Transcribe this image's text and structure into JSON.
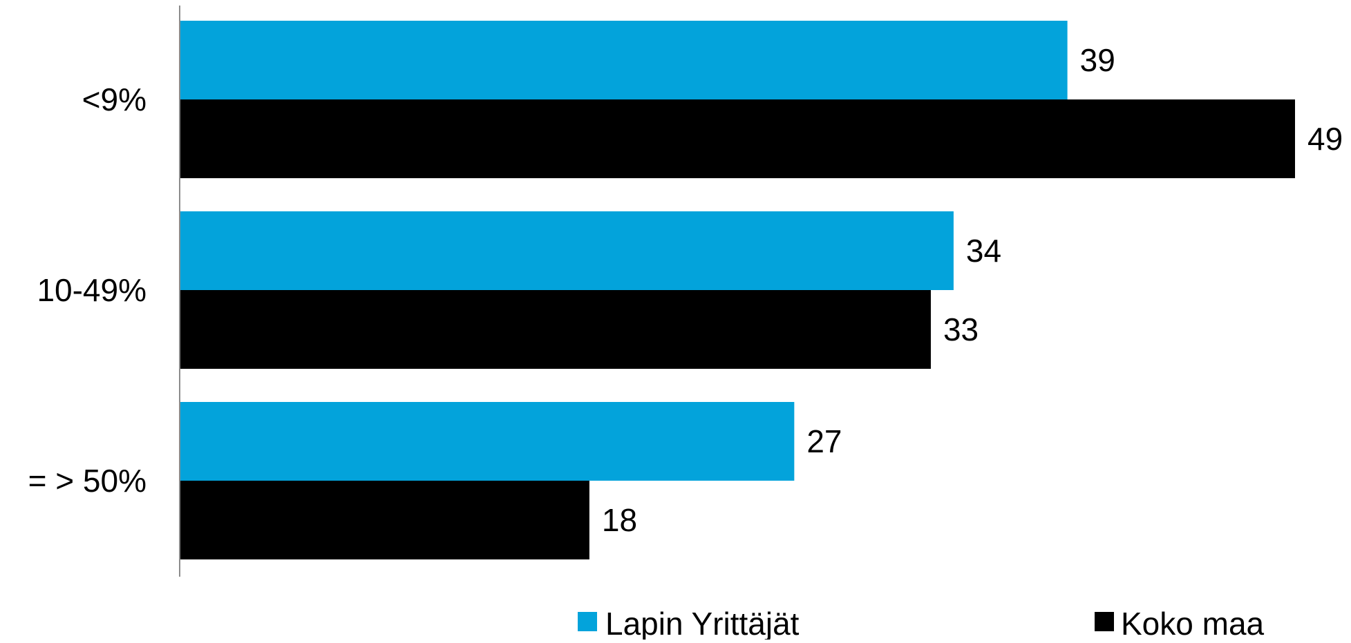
{
  "chart_data": {
    "type": "bar",
    "orientation": "horizontal",
    "categories": [
      "<9%",
      "10-49%",
      "= > 50%"
    ],
    "series": [
      {
        "name": "Lapin Yrittäjät",
        "values": [
          39,
          34,
          27
        ],
        "color": "#03A3DB"
      },
      {
        "name": "Koko maa",
        "values": [
          49,
          33,
          18
        ],
        "color": "#000000"
      }
    ],
    "xlim": [
      0,
      50
    ],
    "grid": false,
    "legend_position": "bottom",
    "data_labels": true
  }
}
